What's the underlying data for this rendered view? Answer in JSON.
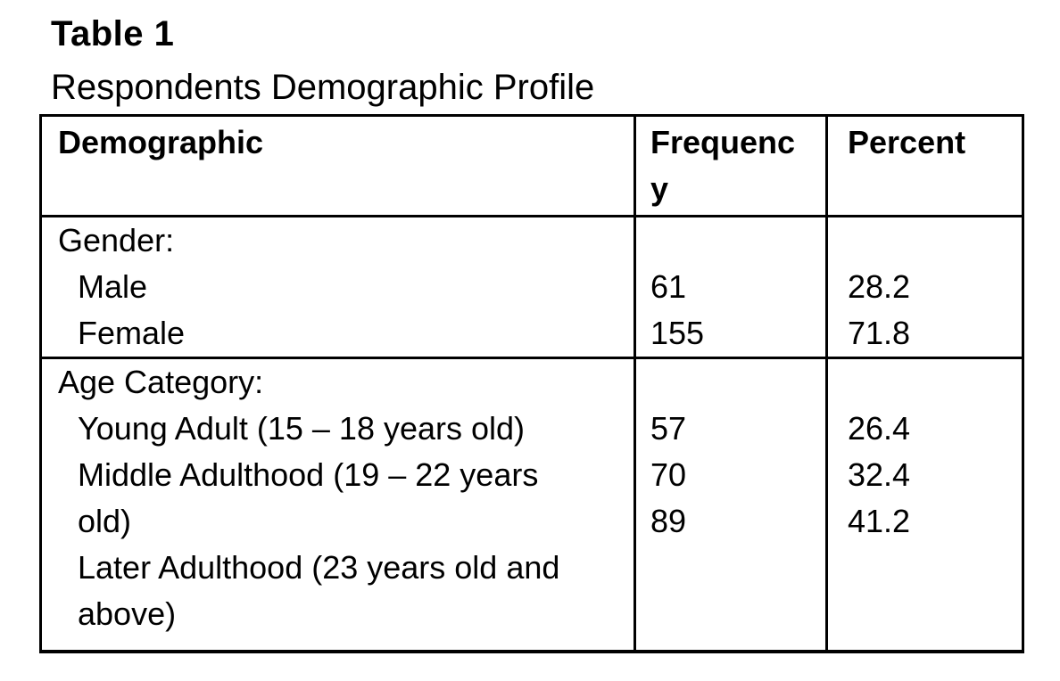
{
  "page": {
    "title": "Table 1",
    "subtitle": "Respondents Demographic Profile"
  },
  "table": {
    "headers": {
      "demographic": "Demographic",
      "frequency": "Frequency",
      "percent": "Percent"
    },
    "sections": [
      {
        "label": "Gender:",
        "rows": [
          {
            "item": "Male",
            "frequency": "61",
            "percent": "28.2"
          },
          {
            "item": "Female",
            "frequency": "155",
            "percent": "71.8"
          }
        ]
      },
      {
        "label": "Age Category:",
        "rows": [
          {
            "item": "Young Adult (15 – 18 years old)",
            "frequency": "57",
            "percent": "26.4"
          },
          {
            "item": "Middle Adulthood (19 – 22 years old)",
            "frequency": "70",
            "percent": "32.4"
          },
          {
            "item": "Later Adulthood (23 years old and above)",
            "frequency": "89",
            "percent": "41.2"
          }
        ]
      }
    ]
  }
}
